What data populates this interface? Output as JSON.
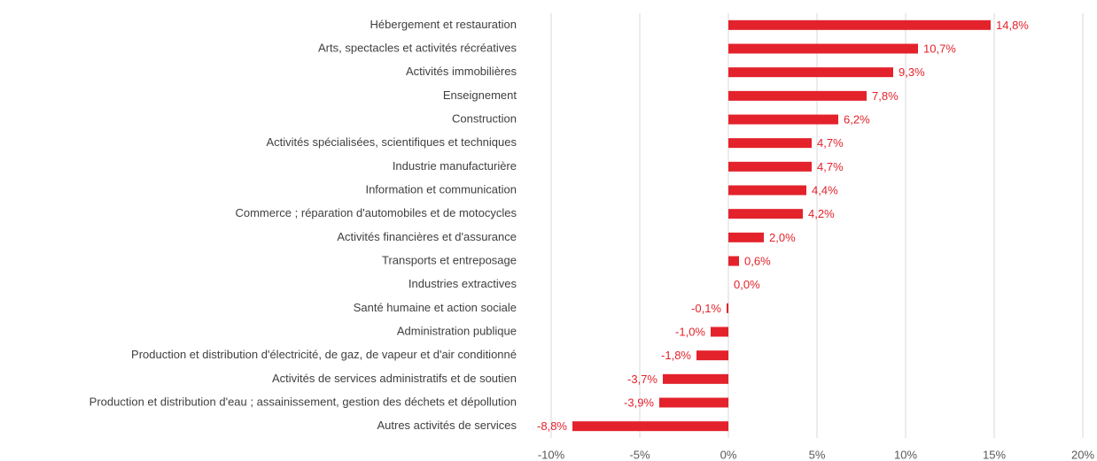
{
  "chart_data": {
    "type": "bar",
    "orientation": "horizontal",
    "categories": [
      "Hébergement et restauration",
      "Arts, spectacles et activités récréatives",
      "Activités immobilières",
      "Enseignement",
      "Construction",
      "Activités spécialisées, scientifiques et techniques",
      "Industrie manufacturière",
      "Information et communication",
      "Commerce ; réparation d'automobiles et de motocycles",
      "Activités financières et d'assurance",
      "Transports et entreposage",
      "Industries extractives",
      "Santé humaine et action sociale",
      "Administration publique",
      "Production et distribution d'électricité, de gaz, de vapeur et d'air conditionné",
      "Activités de services administratifs et de soutien",
      "Production et distribution d'eau ; assainissement, gestion des déchets et dépollution",
      "Autres activités de services"
    ],
    "values": [
      14.8,
      10.7,
      9.3,
      7.8,
      6.2,
      4.7,
      4.7,
      4.4,
      4.2,
      2.0,
      0.6,
      0.0,
      -0.1,
      -1.0,
      -1.8,
      -3.7,
      -3.9,
      -8.8
    ],
    "value_labels": [
      "14,8%",
      "10,7%",
      "9,3%",
      "7,8%",
      "6,2%",
      "4,7%",
      "4,7%",
      "4,4%",
      "4,2%",
      "2,0%",
      "0,6%",
      "0,0%",
      "-0,1%",
      "-1,0%",
      "-1,8%",
      "-3,7%",
      "-3,9%",
      "-8,8%"
    ],
    "color": "#e3222b",
    "xlim": [
      -10,
      20
    ],
    "xticks": [
      {
        "value": -10,
        "label": "-10%"
      },
      {
        "value": -5,
        "label": "-5%"
      },
      {
        "value": 0,
        "label": "0%"
      },
      {
        "value": 5,
        "label": "5%"
      },
      {
        "value": 10,
        "label": "10%"
      },
      {
        "value": 15,
        "label": "15%"
      },
      {
        "value": 20,
        "label": "20%"
      }
    ],
    "grid": true
  }
}
